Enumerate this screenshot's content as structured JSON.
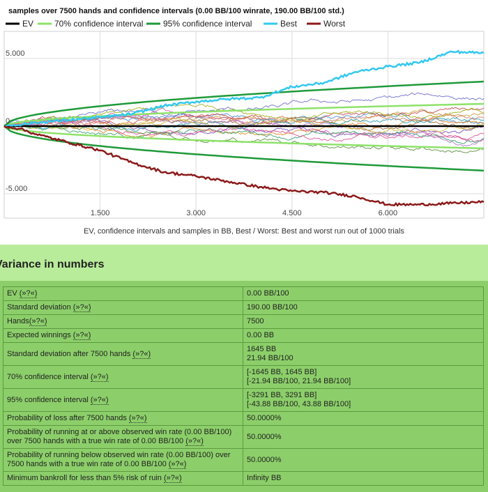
{
  "chart_data": {
    "type": "line",
    "title": "samples over 7500 hands and confidence intervals (0.00 BB/100 winrate, 190.00 BB/100 std.)",
    "caption": "EV, confidence intervals and samples in BB, Best / Worst: Best and worst run out of 1000 trials",
    "xlim": [
      0,
      7500
    ],
    "ylim": [
      -6800,
      7000
    ],
    "x_ticks": [
      {
        "value": 1500,
        "label": "1.500"
      },
      {
        "value": 3000,
        "label": "3.000"
      },
      {
        "value": 4500,
        "label": "4.500"
      },
      {
        "value": 6000,
        "label": "6.000"
      }
    ],
    "y_ticks": [
      {
        "value": 5000,
        "label": "5.000"
      },
      {
        "value": 0,
        "label": "0"
      },
      {
        "value": -5000,
        "label": "-5.000"
      }
    ],
    "legend": [
      {
        "name": "EV",
        "color": "#000000"
      },
      {
        "name": "70% confidence interval",
        "color": "#8de26a"
      },
      {
        "name": "95% confidence interval",
        "color": "#1f9a3a"
      },
      {
        "name": "Best",
        "color": "#33c8f0"
      },
      {
        "name": "Worst",
        "color": "#8b1a1a"
      }
    ],
    "series": [
      {
        "name": "EV",
        "color": "#000000",
        "points": [
          [
            0,
            0
          ],
          [
            7500,
            0
          ]
        ]
      },
      {
        "name": "70% confidence interval",
        "color": "#8de26a",
        "upper_end": 1645,
        "lower_end": -1645
      },
      {
        "name": "95% confidence interval",
        "color": "#1f9a3a",
        "upper_end": 3291,
        "lower_end": -3291
      },
      {
        "name": "Best",
        "color": "#33c8f0",
        "points": [
          [
            0,
            0
          ],
          [
            500,
            250
          ],
          [
            1000,
            450
          ],
          [
            1500,
            650
          ],
          [
            2000,
            900
          ],
          [
            2500,
            1500
          ],
          [
            3000,
            1800
          ],
          [
            3500,
            2000
          ],
          [
            4000,
            2100
          ],
          [
            4500,
            2900
          ],
          [
            5000,
            3200
          ],
          [
            5500,
            4000
          ],
          [
            6000,
            4400
          ],
          [
            6500,
            4700
          ],
          [
            7000,
            5500
          ],
          [
            7500,
            5400
          ]
        ]
      },
      {
        "name": "Worst",
        "color": "#8b1a1a",
        "points": [
          [
            0,
            0
          ],
          [
            250,
            -200
          ],
          [
            500,
            -600
          ],
          [
            1000,
            -1200
          ],
          [
            1500,
            -1800
          ],
          [
            2000,
            -2700
          ],
          [
            2500,
            -3400
          ],
          [
            3000,
            -3700
          ],
          [
            3500,
            -4100
          ],
          [
            4000,
            -4500
          ],
          [
            4500,
            -4800
          ],
          [
            5000,
            -4900
          ],
          [
            5500,
            -5200
          ],
          [
            6000,
            -5800
          ],
          [
            6500,
            -5800
          ],
          [
            7000,
            -5700
          ],
          [
            7500,
            -5600
          ]
        ]
      }
    ],
    "sample_colors": [
      "#c8a23a",
      "#7a4fb0",
      "#d05fa0",
      "#4a8fd0",
      "#e08a2a",
      "#3aa36f",
      "#9b6d3a",
      "#c94a4a",
      "#6f6fd0",
      "#a0b020",
      "#e0559a",
      "#2f9fb0",
      "#b07ad0",
      "#d0c040",
      "#5e8e3e",
      "#d97a6a"
    ]
  },
  "variance": {
    "title": "Variance in numbers",
    "help": "(»?«)",
    "rows": [
      {
        "label": "EV ",
        "help": true,
        "value": "0.00 BB/100"
      },
      {
        "label": "Standard deviation ",
        "help": true,
        "value": "190.00 BB/100"
      },
      {
        "label": "Hands",
        "help": true,
        "value": "7500"
      },
      {
        "label": "Expected winnings ",
        "help": true,
        "value": "0.00 BB"
      },
      {
        "label": "Standard deviation after 7500 hands ",
        "help": true,
        "value": "1645 BB\n21.94 BB/100"
      },
      {
        "label": "70% confidence interval ",
        "help": true,
        "value": "[-1645 BB, 1645 BB]\n[-21.94 BB/100, 21.94 BB/100]"
      },
      {
        "label": "95% confidence interval ",
        "help": true,
        "value": "[-3291 BB, 3291 BB]\n[-43.88 BB/100, 43.88 BB/100]"
      },
      {
        "label": "Probability of loss after 7500 hands ",
        "help": true,
        "value": "50.0000%"
      },
      {
        "label": "Probability of running at or above observed win rate (0.00 BB/100) over 7500 hands with a true win rate of 0.00 BB/100 ",
        "help": true,
        "value": "50.0000%"
      },
      {
        "label": "Probability of running below observed win rate (0.00 BB/100) over 7500 hands with a true win rate of 0.00 BB/100 ",
        "help": true,
        "value": "50.0000%"
      },
      {
        "label": "Minimum bankroll for less than 5% risk of ruin ",
        "help": true,
        "value": "Infinity BB"
      }
    ]
  }
}
